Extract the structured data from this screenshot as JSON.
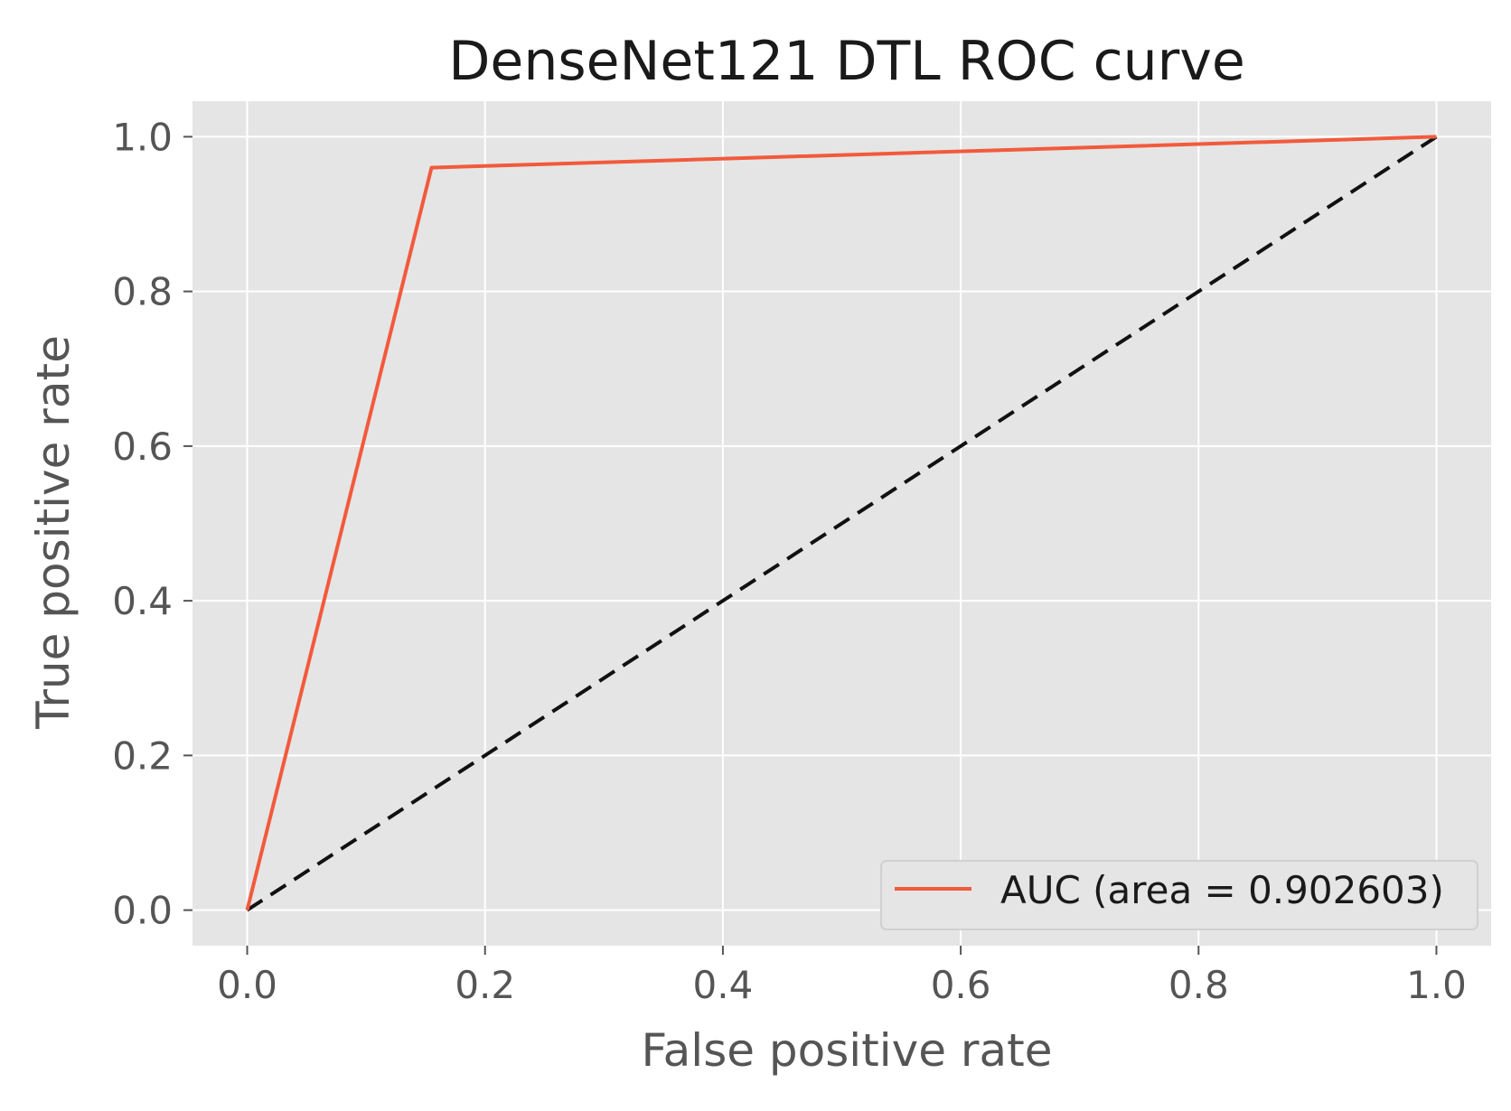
{
  "chart_data": {
    "type": "line",
    "title": "DenseNet121 DTL ROC curve",
    "xlabel": "False positive rate",
    "ylabel": "True positive rate",
    "xlim": [
      -0.046,
      1.046
    ],
    "ylim": [
      -0.046,
      1.046
    ],
    "xticks": [
      {
        "value": 0.0,
        "label": "0.0"
      },
      {
        "value": 0.2,
        "label": "0.2"
      },
      {
        "value": 0.4,
        "label": "0.4"
      },
      {
        "value": 0.6,
        "label": "0.6"
      },
      {
        "value": 0.8,
        "label": "0.8"
      },
      {
        "value": 1.0,
        "label": "1.0"
      }
    ],
    "yticks": [
      {
        "value": 0.0,
        "label": "0.0"
      },
      {
        "value": 0.2,
        "label": "0.2"
      },
      {
        "value": 0.4,
        "label": "0.4"
      },
      {
        "value": 0.6,
        "label": "0.6"
      },
      {
        "value": 0.8,
        "label": "0.8"
      },
      {
        "value": 1.0,
        "label": "1.0"
      }
    ],
    "grid": true,
    "legend_position": "lower-right",
    "series": [
      {
        "name": "AUC (area = 0.902603)",
        "color": "#f25a3c",
        "style": "solid",
        "x": [
          0.0,
          0.155,
          1.0
        ],
        "y": [
          0.0,
          0.96,
          1.0
        ]
      },
      {
        "color": "#111111",
        "style": "dashed",
        "x": [
          0.0,
          1.0
        ],
        "y": [
          0.0,
          1.0
        ]
      }
    ],
    "colors": {
      "plot_background": "#e5e5e5",
      "grid": "#ffffff"
    }
  }
}
